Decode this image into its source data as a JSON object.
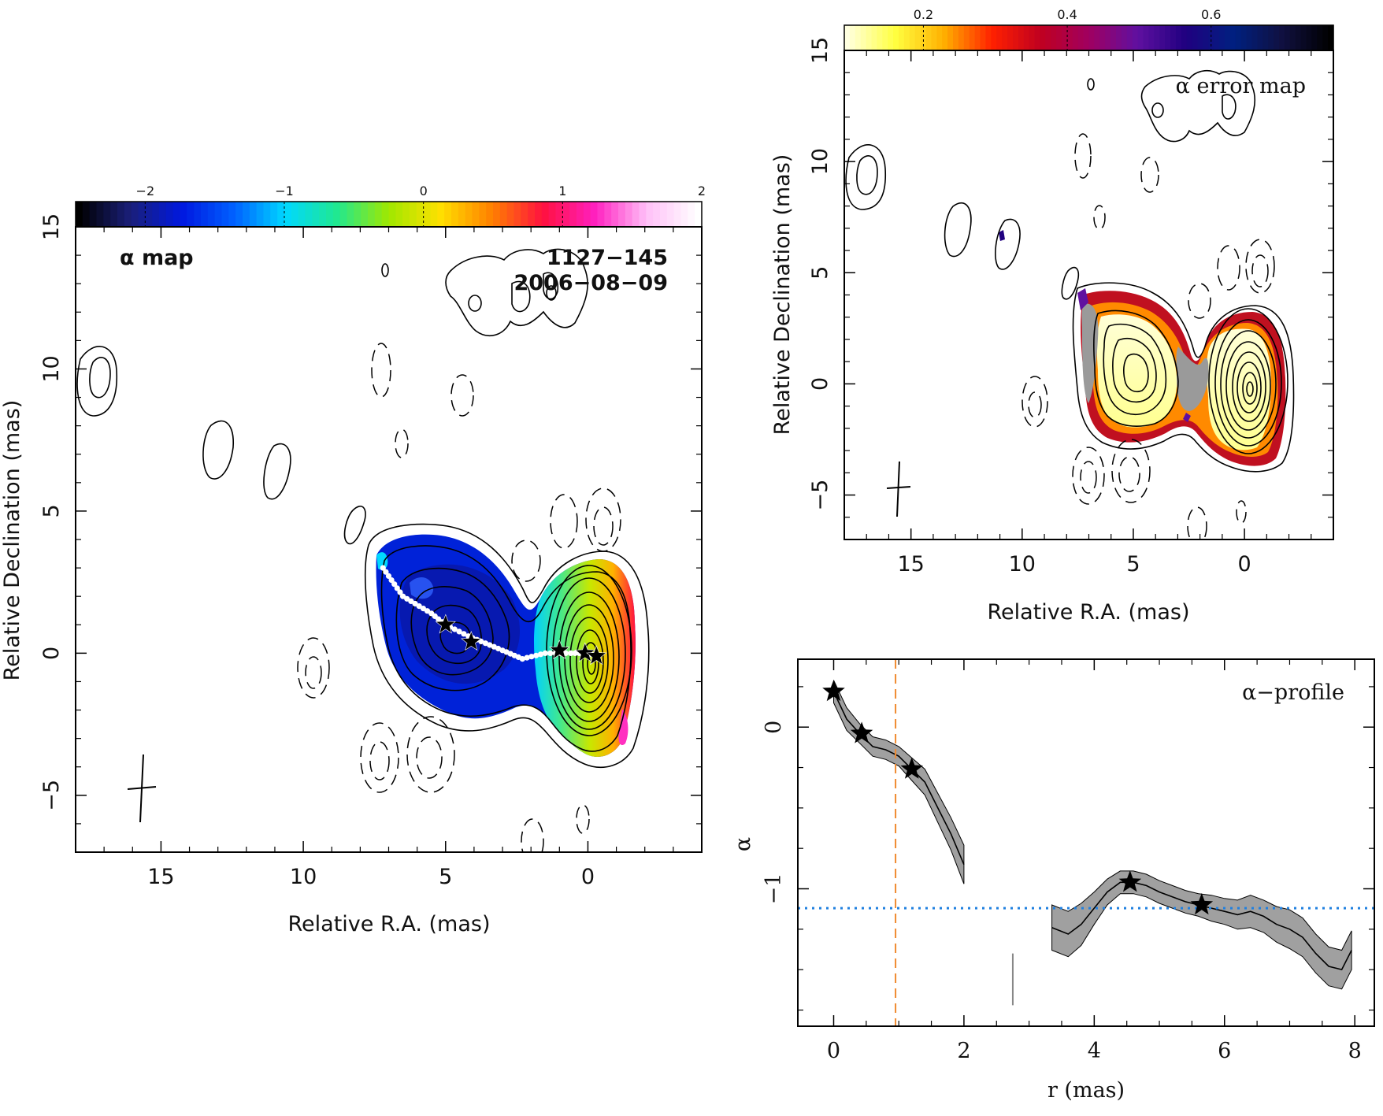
{
  "chart_data": [
    {
      "type": "heatmap",
      "panel": "alpha-map",
      "annotation_label": "α map",
      "source_label": "1127−145",
      "epoch_label": "2006−08−09",
      "xlabel": "Relative R.A. (mas)",
      "ylabel": "Relative Declination (mas)",
      "xlim": [
        18,
        -4
      ],
      "ylim": [
        -7,
        15
      ],
      "x_ticks": [
        15,
        10,
        5,
        0
      ],
      "x_tick_labels": [
        "15",
        "10",
        "5",
        "0"
      ],
      "y_ticks": [
        -5,
        0,
        5,
        10,
        15
      ],
      "y_tick_labels": [
        "−5",
        "0",
        "5",
        "10",
        "15"
      ],
      "colorbar": {
        "range": [
          -2.5,
          2
        ],
        "ticks": [
          -2,
          -1,
          0,
          1,
          2
        ],
        "tick_labels": [
          "−2",
          "−1",
          "0",
          "1",
          "2"
        ],
        "colors": [
          "#000000",
          "#1a1f7a",
          "#0018e0",
          "#0060ff",
          "#00d8ff",
          "#20e890",
          "#a0e800",
          "#ffe000",
          "#ff8000",
          "#ff1040",
          "#ff20c0",
          "#ffc0f8",
          "#ffffff"
        ]
      },
      "ridge_points": [
        [
          7.2,
          3.0
        ],
        [
          6.5,
          2.0
        ],
        [
          5.5,
          1.4
        ],
        [
          5.0,
          1.0
        ],
        [
          4.2,
          0.6
        ],
        [
          3.0,
          0.1
        ],
        [
          2.3,
          -0.2
        ],
        [
          1.5,
          0.0
        ],
        [
          0.6,
          0.0
        ],
        [
          0.0,
          0.0
        ],
        [
          -0.3,
          -0.1
        ]
      ],
      "component_stars": [
        [
          5.0,
          1.0
        ],
        [
          4.1,
          0.4
        ],
        [
          1.0,
          0.1
        ],
        [
          0.1,
          0.0
        ],
        [
          -0.3,
          -0.1
        ]
      ]
    },
    {
      "type": "heatmap",
      "panel": "alpha-error-map",
      "annotation_label": "α error map",
      "xlabel": "Relative R.A. (mas)",
      "ylabel": "Relative Declination (mas)",
      "xlim": [
        18,
        -4
      ],
      "ylim": [
        -7,
        15
      ],
      "x_ticks": [
        15,
        10,
        5,
        0
      ],
      "x_tick_labels": [
        "15",
        "10",
        "5",
        "0"
      ],
      "y_ticks": [
        -5,
        0,
        5,
        10,
        15
      ],
      "y_tick_labels": [
        "−5",
        "0",
        "5",
        "10",
        "15"
      ],
      "colorbar": {
        "range": [
          0.09,
          0.77
        ],
        "ticks": [
          0.2,
          0.4,
          0.6
        ],
        "tick_labels": [
          "0.2",
          "0.4",
          "0.6"
        ],
        "colors": [
          "#ffffe0",
          "#ffff40",
          "#ffb000",
          "#ff2000",
          "#c00020",
          "#a00060",
          "#6010a0",
          "#200080",
          "#002080",
          "#101040",
          "#000000"
        ]
      }
    },
    {
      "type": "line",
      "panel": "alpha-profile",
      "annotation_label": "α−profile",
      "xlabel": "r (mas)",
      "ylabel": "α",
      "xlim": [
        -0.55,
        8.3
      ],
      "ylim": [
        -1.85,
        0.42
      ],
      "x_ticks": [
        0,
        2,
        4,
        6,
        8
      ],
      "x_tick_labels": [
        "0",
        "2",
        "4",
        "6",
        "8"
      ],
      "y_ticks": [
        -1,
        0
      ],
      "y_tick_labels": [
        "−1",
        "0"
      ],
      "series": [
        {
          "x": [
            0.0,
            0.2,
            0.4,
            0.6,
            0.8,
            1.0,
            1.2,
            1.4,
            1.6,
            1.8,
            2.0
          ],
          "y": [
            0.22,
            0.05,
            -0.04,
            -0.12,
            -0.14,
            -0.18,
            -0.26,
            -0.34,
            -0.5,
            -0.66,
            -0.85
          ],
          "err": [
            0.07,
            0.07,
            0.06,
            0.06,
            0.06,
            0.06,
            0.07,
            0.08,
            0.09,
            0.1,
            0.12
          ]
        },
        {
          "x": [
            3.35,
            3.6,
            3.8,
            4.0,
            4.2,
            4.4,
            4.6,
            4.8,
            5.0,
            5.2,
            5.4,
            5.6,
            5.8,
            6.0,
            6.2,
            6.4,
            6.6,
            6.8,
            7.0,
            7.2,
            7.4,
            7.6,
            7.8,
            7.95
          ],
          "y": [
            -1.24,
            -1.28,
            -1.22,
            -1.12,
            -1.02,
            -0.96,
            -0.96,
            -0.98,
            -1.02,
            -1.05,
            -1.08,
            -1.1,
            -1.12,
            -1.14,
            -1.16,
            -1.14,
            -1.17,
            -1.22,
            -1.25,
            -1.3,
            -1.4,
            -1.48,
            -1.5,
            -1.38
          ],
          "err": [
            0.14,
            0.14,
            0.13,
            0.1,
            0.08,
            0.07,
            0.07,
            0.07,
            0.07,
            0.07,
            0.07,
            0.07,
            0.08,
            0.08,
            0.09,
            0.1,
            0.1,
            0.11,
            0.12,
            0.12,
            0.12,
            0.12,
            0.12,
            0.12
          ]
        }
      ],
      "stars": [
        [
          0.0,
          0.22
        ],
        [
          0.43,
          -0.04
        ],
        [
          1.2,
          -0.26
        ],
        [
          4.55,
          -0.96
        ],
        [
          5.65,
          -1.1
        ]
      ],
      "vline_x": 0.95,
      "hline_y": -1.12,
      "gap_marker_x": 2.75,
      "gap_marker_y": [
        -1.72,
        -1.4
      ],
      "colors": {
        "vline": "#f08a30",
        "hline": "#2080e0",
        "band": "#a0a0a0"
      }
    }
  ]
}
